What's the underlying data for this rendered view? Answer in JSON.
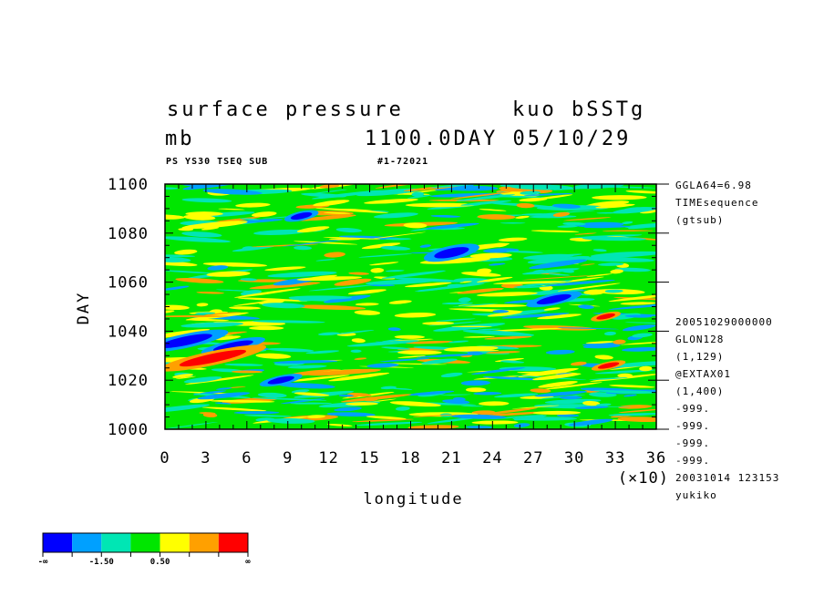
{
  "header": {
    "title_left": "surface pressure",
    "title_right": "kuo bSSTg",
    "units": "mb",
    "time_stamp": "1100.0DAY 05/10/29",
    "sub_left": "PS YS30 TSEQ SUB",
    "sub_right": "#1-72021"
  },
  "side_info": {
    "top": [
      "GGLA64=6.98",
      "TIMEsequence",
      "(gtsub)"
    ],
    "bottom": [
      "20051029000000",
      "GLON128",
      "(1,129)",
      "@EXTAX01",
      "(1,400)",
      "-999.",
      "-999.",
      "-999.",
      "-999.",
      "20031014 123153",
      "yukiko"
    ]
  },
  "chart_data": {
    "type": "heatmap",
    "title": "surface pressure",
    "xlabel": "longitude",
    "ylabel": "DAY",
    "x_multiplier_label": "(×10)",
    "xlim": [
      0,
      36
    ],
    "ylim": [
      1000,
      1100
    ],
    "x_ticks": [
      "0",
      "3",
      "6",
      "9",
      "12",
      "15",
      "18",
      "21",
      "24",
      "27",
      "30",
      "33",
      "36"
    ],
    "y_ticks": [
      "1000",
      "1020",
      "1040",
      "1060",
      "1080",
      "1100"
    ],
    "y_tick_values": [
      1000,
      1020,
      1040,
      1060,
      1080,
      1100
    ],
    "x_tick_values": [
      0,
      3,
      6,
      9,
      12,
      15,
      18,
      21,
      24,
      27,
      30,
      33,
      36
    ],
    "color_levels": [
      "#0000ff",
      "#00a0ff",
      "#00e6b4",
      "#00e600",
      "#ffff00",
      "#ffa000",
      "#ff0000"
    ],
    "colorbar_labels": [
      "-∞",
      "-1.50",
      "0.50",
      "∞"
    ],
    "colorbar_label_positions": [
      0,
      2,
      4,
      7
    ],
    "dominant_level_index": 3,
    "features": [
      {
        "level": 0,
        "x": 10.0,
        "y": 1087,
        "w": 0.8,
        "h": 1.0
      },
      {
        "level": 0,
        "x": 21.0,
        "y": 1072,
        "w": 1.3,
        "h": 1.5
      },
      {
        "level": 0,
        "x": 28.5,
        "y": 1053,
        "w": 1.3,
        "h": 1.2
      },
      {
        "level": 0,
        "x": 1.5,
        "y": 1036,
        "w": 2.0,
        "h": 1.5
      },
      {
        "level": 0,
        "x": 5.0,
        "y": 1034,
        "w": 1.5,
        "h": 1.2
      },
      {
        "level": 0,
        "x": 8.5,
        "y": 1020,
        "w": 1.0,
        "h": 1.0
      },
      {
        "level": 6,
        "x": 3.5,
        "y": 1029,
        "w": 2.5,
        "h": 1.5
      },
      {
        "level": 6,
        "x": 32.5,
        "y": 1026,
        "w": 0.8,
        "h": 0.8
      },
      {
        "level": 6,
        "x": 32.3,
        "y": 1046,
        "w": 0.7,
        "h": 0.8
      }
    ]
  }
}
